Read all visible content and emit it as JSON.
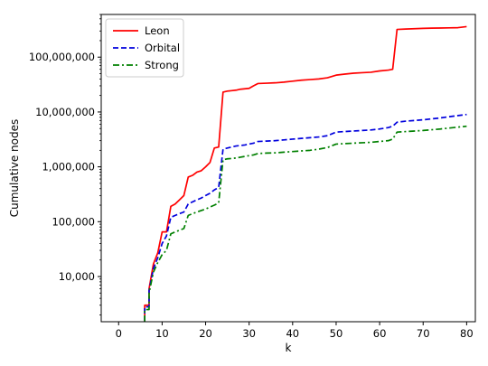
{
  "chart_data": {
    "type": "line",
    "xlabel": "k",
    "ylabel": "Cumulative nodes",
    "x_scale": "linear",
    "y_scale": "log",
    "xlim": [
      -4,
      82
    ],
    "ylim": [
      1500,
      600000000
    ],
    "x_ticks": [
      0,
      10,
      20,
      30,
      40,
      50,
      60,
      70,
      80
    ],
    "x_tick_labels": [
      "0",
      "10",
      "20",
      "30",
      "40",
      "50",
      "60",
      "70",
      "80"
    ],
    "y_ticks": [
      10000,
      100000,
      1000000,
      10000000,
      100000000
    ],
    "y_tick_labels": [
      "10,000",
      "100,000",
      "1,000,000",
      "10,000,000",
      "100,000,000"
    ],
    "grid": false,
    "legend_position": "top-left",
    "series": [
      {
        "name": "Leon",
        "color": "#ff0000",
        "dash": "solid",
        "points": [
          [
            6,
            1500
          ],
          [
            6,
            3000
          ],
          [
            7,
            3000
          ],
          [
            7,
            6000
          ],
          [
            8,
            17000
          ],
          [
            9,
            27000
          ],
          [
            10,
            65000
          ],
          [
            11,
            65000
          ],
          [
            12,
            190000
          ],
          [
            13,
            210000
          ],
          [
            14,
            250000
          ],
          [
            15,
            300000
          ],
          [
            16,
            650000
          ],
          [
            17,
            700000
          ],
          [
            18,
            800000
          ],
          [
            19,
            850000
          ],
          [
            20,
            1000000
          ],
          [
            21,
            1200000
          ],
          [
            22,
            2200000
          ],
          [
            23,
            2300000
          ],
          [
            24,
            23000000
          ],
          [
            25,
            24000000
          ],
          [
            26,
            24500000
          ],
          [
            27,
            25000000
          ],
          [
            28,
            26000000
          ],
          [
            29,
            26500000
          ],
          [
            30,
            27000000
          ],
          [
            31,
            30000000
          ],
          [
            32,
            33000000
          ],
          [
            34,
            33500000
          ],
          [
            36,
            34000000
          ],
          [
            38,
            35000000
          ],
          [
            40,
            36500000
          ],
          [
            42,
            38000000
          ],
          [
            44,
            39000000
          ],
          [
            46,
            40000000
          ],
          [
            48,
            42000000
          ],
          [
            50,
            47000000
          ],
          [
            52,
            49000000
          ],
          [
            54,
            51000000
          ],
          [
            56,
            52000000
          ],
          [
            58,
            53000000
          ],
          [
            60,
            56000000
          ],
          [
            62,
            58000000
          ],
          [
            63,
            60000000
          ],
          [
            64,
            320000000
          ],
          [
            66,
            325000000
          ],
          [
            68,
            330000000
          ],
          [
            70,
            335000000
          ],
          [
            72,
            338000000
          ],
          [
            74,
            340000000
          ],
          [
            76,
            342000000
          ],
          [
            78,
            345000000
          ],
          [
            80,
            360000000
          ]
        ]
      },
      {
        "name": "Orbital",
        "color": "#0000dd",
        "dash": "dashed",
        "points": [
          [
            6,
            1500
          ],
          [
            6,
            2800
          ],
          [
            7,
            2800
          ],
          [
            7,
            5500
          ],
          [
            8,
            14000
          ],
          [
            9,
            22000
          ],
          [
            10,
            40000
          ],
          [
            11,
            55000
          ],
          [
            12,
            120000
          ],
          [
            13,
            130000
          ],
          [
            14,
            140000
          ],
          [
            15,
            150000
          ],
          [
            16,
            210000
          ],
          [
            17,
            230000
          ],
          [
            18,
            250000
          ],
          [
            19,
            270000
          ],
          [
            20,
            300000
          ],
          [
            21,
            330000
          ],
          [
            22,
            380000
          ],
          [
            23,
            420000
          ],
          [
            24,
            2100000
          ],
          [
            25,
            2200000
          ],
          [
            26,
            2300000
          ],
          [
            27,
            2400000
          ],
          [
            28,
            2450000
          ],
          [
            29,
            2500000
          ],
          [
            30,
            2600000
          ],
          [
            31,
            2700000
          ],
          [
            32,
            2900000
          ],
          [
            34,
            2950000
          ],
          [
            36,
            3000000
          ],
          [
            38,
            3100000
          ],
          [
            40,
            3200000
          ],
          [
            42,
            3300000
          ],
          [
            44,
            3400000
          ],
          [
            46,
            3500000
          ],
          [
            48,
            3700000
          ],
          [
            50,
            4300000
          ],
          [
            52,
            4400000
          ],
          [
            54,
            4500000
          ],
          [
            56,
            4600000
          ],
          [
            58,
            4700000
          ],
          [
            60,
            4900000
          ],
          [
            62,
            5200000
          ],
          [
            63,
            5500000
          ],
          [
            64,
            6500000
          ],
          [
            66,
            6800000
          ],
          [
            68,
            7000000
          ],
          [
            70,
            7200000
          ],
          [
            72,
            7500000
          ],
          [
            74,
            7800000
          ],
          [
            76,
            8200000
          ],
          [
            78,
            8600000
          ],
          [
            80,
            9000000
          ]
        ]
      },
      {
        "name": "Strong",
        "color": "#008000",
        "dash": "dashdot",
        "points": [
          [
            6,
            1500
          ],
          [
            6,
            2500
          ],
          [
            7,
            2500
          ],
          [
            7,
            5000
          ],
          [
            8,
            12000
          ],
          [
            9,
            18000
          ],
          [
            10,
            25000
          ],
          [
            11,
            30000
          ],
          [
            12,
            60000
          ],
          [
            13,
            65000
          ],
          [
            14,
            70000
          ],
          [
            15,
            75000
          ],
          [
            16,
            130000
          ],
          [
            17,
            140000
          ],
          [
            18,
            150000
          ],
          [
            19,
            160000
          ],
          [
            20,
            170000
          ],
          [
            21,
            185000
          ],
          [
            22,
            200000
          ],
          [
            23,
            220000
          ],
          [
            24,
            1350000
          ],
          [
            25,
            1400000
          ],
          [
            26,
            1420000
          ],
          [
            27,
            1450000
          ],
          [
            28,
            1500000
          ],
          [
            29,
            1550000
          ],
          [
            30,
            1600000
          ],
          [
            31,
            1650000
          ],
          [
            32,
            1750000
          ],
          [
            34,
            1780000
          ],
          [
            36,
            1800000
          ],
          [
            38,
            1850000
          ],
          [
            40,
            1900000
          ],
          [
            42,
            1950000
          ],
          [
            44,
            2000000
          ],
          [
            46,
            2100000
          ],
          [
            48,
            2250000
          ],
          [
            50,
            2600000
          ],
          [
            52,
            2650000
          ],
          [
            54,
            2700000
          ],
          [
            56,
            2750000
          ],
          [
            58,
            2800000
          ],
          [
            60,
            2900000
          ],
          [
            62,
            3000000
          ],
          [
            63,
            3200000
          ],
          [
            64,
            4300000
          ],
          [
            66,
            4400000
          ],
          [
            68,
            4500000
          ],
          [
            70,
            4600000
          ],
          [
            72,
            4750000
          ],
          [
            74,
            4900000
          ],
          [
            76,
            5100000
          ],
          [
            78,
            5300000
          ],
          [
            80,
            5500000
          ]
        ]
      }
    ]
  }
}
